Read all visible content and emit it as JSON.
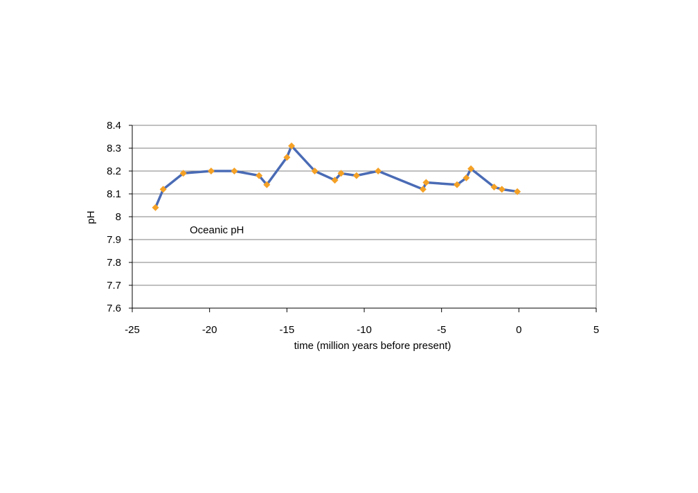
{
  "chart_data": {
    "type": "line",
    "xlabel": "time (million years before present)",
    "ylabel": "pH",
    "annotation": "Oceanic pH",
    "xlim": [
      -25,
      5
    ],
    "ylim": [
      7.6,
      8.4
    ],
    "x_ticks": [
      -25,
      -20,
      -15,
      -10,
      -5,
      0,
      5
    ],
    "x_tick_labels": [
      "-25",
      "-20",
      "-15",
      "-10",
      "-5",
      "0",
      "5"
    ],
    "y_ticks": [
      7.6,
      7.7,
      7.8,
      7.9,
      8.0,
      8.1,
      8.2,
      8.3,
      8.4
    ],
    "y_tick_labels": [
      "7.6",
      "7.7",
      "7.8",
      "7.9",
      "8",
      "8.1",
      "8.2",
      "8.3",
      "8.4"
    ],
    "grid": "horizontal",
    "legend": "none",
    "series": [
      {
        "line_color": "#4a6bb5",
        "marker_color": "#f4a126",
        "marker": "diamond",
        "x": [
          -23.5,
          -23.0,
          -21.7,
          -19.9,
          -18.4,
          -16.8,
          -16.3,
          -15.0,
          -14.7,
          -13.2,
          -11.9,
          -11.5,
          -10.5,
          -9.1,
          -6.2,
          -6.0,
          -4.0,
          -3.4,
          -3.1,
          -1.6,
          -1.1,
          -0.1
        ],
        "y": [
          8.04,
          8.12,
          8.19,
          8.2,
          8.2,
          8.18,
          8.14,
          8.26,
          8.31,
          8.2,
          8.16,
          8.19,
          8.18,
          8.2,
          8.12,
          8.15,
          8.14,
          8.17,
          8.21,
          8.13,
          8.12,
          8.11
        ]
      }
    ]
  }
}
